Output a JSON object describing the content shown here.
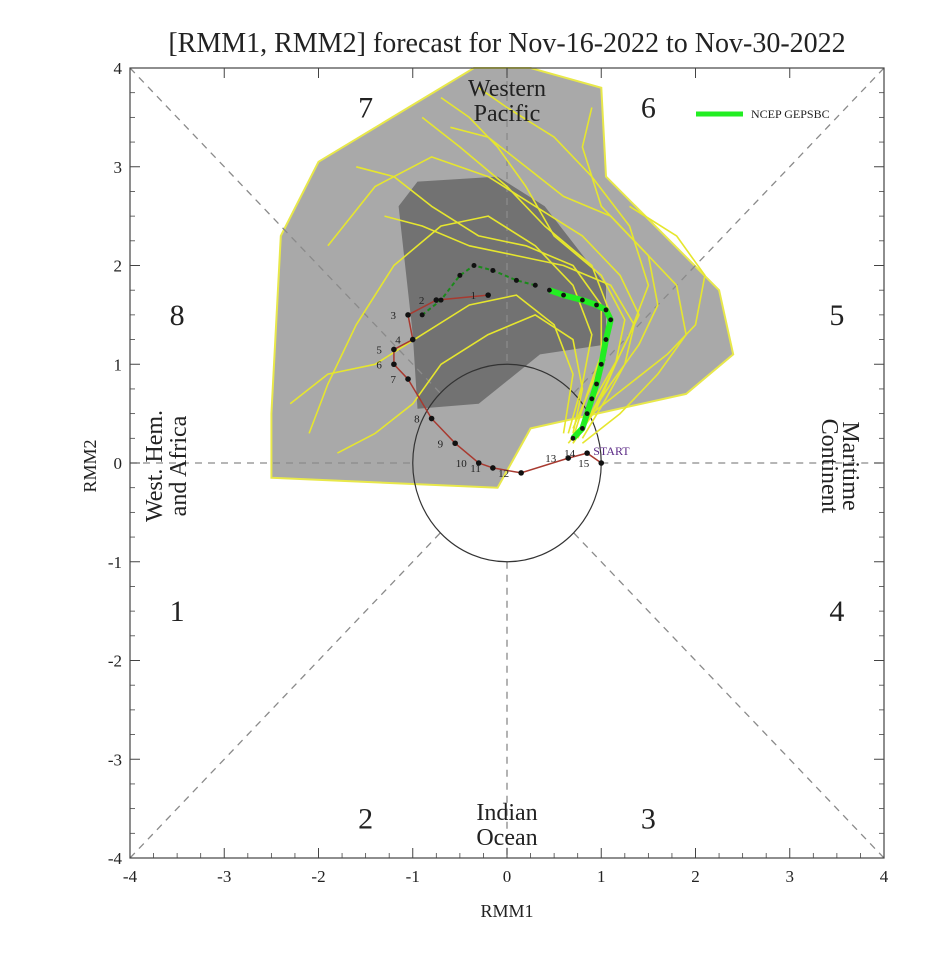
{
  "chart_data": {
    "type": "line",
    "title": "[RMM1, RMM2] forecast for Nov-16-2022 to Nov-30-2022",
    "xlabel": "RMM1",
    "ylabel": "RMM2",
    "xlim": [
      -4,
      4
    ],
    "ylim": [
      -4,
      4
    ],
    "x_ticks": [
      "-4",
      "-3",
      "-2",
      "-1",
      "0",
      "1",
      "2",
      "3",
      "4"
    ],
    "y_ticks": [
      "-4",
      "-3",
      "-2",
      "-1",
      "0",
      "1",
      "2",
      "3",
      "4"
    ],
    "phases": [
      "1",
      "2",
      "3",
      "4",
      "5",
      "6",
      "7",
      "8"
    ],
    "regions": {
      "western_pacific": [
        "Western",
        "Pacific"
      ],
      "indian_ocean": [
        "Indian",
        "Ocean"
      ],
      "maritime_continent": [
        "Maritime",
        "Continent"
      ],
      "west_hem": [
        "West. Hem.",
        "and Africa"
      ]
    },
    "legend": {
      "label": "NCEP GEPSBC",
      "color": "#22ee22",
      "placement": "top-right"
    },
    "spread_outer_90pct": [
      [
        -2.5,
        -0.15
      ],
      [
        -0.1,
        -0.25
      ],
      [
        0.25,
        0.35
      ],
      [
        1.9,
        0.7
      ],
      [
        2.4,
        1.1
      ],
      [
        2.25,
        1.75
      ],
      [
        1.05,
        2.9
      ],
      [
        1.0,
        3.8
      ],
      [
        0.25,
        4.0
      ],
      [
        -0.35,
        4.0
      ],
      [
        -2.0,
        3.05
      ],
      [
        -2.4,
        2.3
      ],
      [
        -2.5,
        0.5
      ]
    ],
    "spread_inner_50pct": [
      [
        -1.0,
        1.3
      ],
      [
        -1.15,
        2.6
      ],
      [
        -0.95,
        2.85
      ],
      [
        -0.1,
        2.9
      ],
      [
        0.4,
        2.6
      ],
      [
        1.05,
        1.8
      ],
      [
        1.05,
        1.2
      ],
      [
        0.35,
        1.1
      ],
      [
        -0.3,
        0.6
      ],
      [
        -0.95,
        0.55
      ]
    ],
    "observed": {
      "color": "#a83a30",
      "label": "START",
      "points": [
        {
          "d": "1",
          "x": -0.2,
          "y": 1.7
        },
        {
          "d": "2",
          "x": -0.75,
          "y": 1.65
        },
        {
          "d": "3",
          "x": -1.05,
          "y": 1.5
        },
        {
          "d": "4",
          "x": -1.0,
          "y": 1.25
        },
        {
          "d": "5",
          "x": -1.2,
          "y": 1.15
        },
        {
          "d": "6",
          "x": -1.2,
          "y": 1.0
        },
        {
          "d": "7",
          "x": -1.05,
          "y": 0.85
        },
        {
          "d": "8",
          "x": -0.8,
          "y": 0.45
        },
        {
          "d": "9",
          "x": -0.55,
          "y": 0.2
        },
        {
          "d": "10",
          "x": -0.3,
          "y": 0.0
        },
        {
          "d": "11",
          "x": -0.15,
          "y": -0.05
        },
        {
          "d": "12",
          "x": 0.15,
          "y": -0.1
        },
        {
          "d": "13",
          "x": 0.65,
          "y": 0.05
        },
        {
          "d": "14",
          "x": 0.85,
          "y": 0.1
        },
        {
          "d": "15",
          "x": 1.0,
          "y": 0.0
        }
      ]
    },
    "ensemble_mean": {
      "name": "NCEP GEPSBC",
      "points": [
        {
          "x": 0.7,
          "y": 0.25
        },
        {
          "x": 0.8,
          "y": 0.35
        },
        {
          "x": 0.85,
          "y": 0.5
        },
        {
          "x": 0.9,
          "y": 0.65
        },
        {
          "x": 0.95,
          "y": 0.8
        },
        {
          "x": 1.0,
          "y": 1.0
        },
        {
          "x": 1.05,
          "y": 1.25
        },
        {
          "x": 1.1,
          "y": 1.45
        },
        {
          "x": 1.05,
          "y": 1.55
        },
        {
          "x": 0.95,
          "y": 1.6
        },
        {
          "x": 0.8,
          "y": 1.65
        },
        {
          "x": 0.6,
          "y": 1.7
        },
        {
          "x": 0.45,
          "y": 1.75
        }
      ]
    },
    "control_forecast": {
      "color": "#1a8a1a",
      "points": [
        {
          "x": 0.3,
          "y": 1.8
        },
        {
          "x": 0.1,
          "y": 1.85
        },
        {
          "x": -0.15,
          "y": 1.95
        },
        {
          "x": -0.35,
          "y": 2.0
        },
        {
          "x": -0.5,
          "y": 1.9
        },
        {
          "x": -0.7,
          "y": 1.65
        },
        {
          "x": -0.9,
          "y": 1.5
        }
      ]
    },
    "ensemble_members": [
      [
        [
          0.7,
          0.2
        ],
        [
          0.9,
          0.6
        ],
        [
          1.2,
          1.1
        ],
        [
          1.4,
          1.5
        ],
        [
          1.2,
          1.9
        ],
        [
          0.8,
          2.3
        ],
        [
          0.3,
          2.6
        ],
        [
          -0.2,
          2.9
        ],
        [
          -0.8,
          3.1
        ],
        [
          -1.4,
          2.8
        ],
        [
          -1.9,
          2.2
        ]
      ],
      [
        [
          0.75,
          0.25
        ],
        [
          1.0,
          0.7
        ],
        [
          1.3,
          1.3
        ],
        [
          1.5,
          1.8
        ],
        [
          1.3,
          2.4
        ],
        [
          0.9,
          2.9
        ],
        [
          0.5,
          3.3
        ],
        [
          0.0,
          3.6
        ],
        [
          -0.3,
          3.8
        ]
      ],
      [
        [
          0.65,
          0.3
        ],
        [
          0.8,
          0.8
        ],
        [
          0.9,
          1.3
        ],
        [
          0.7,
          1.8
        ],
        [
          0.3,
          2.2
        ],
        [
          -0.2,
          2.5
        ],
        [
          -0.7,
          2.4
        ],
        [
          -1.2,
          2.0
        ],
        [
          -1.6,
          1.4
        ],
        [
          -1.9,
          0.8
        ],
        [
          -2.1,
          0.3
        ]
      ],
      [
        [
          0.7,
          0.35
        ],
        [
          0.95,
          0.9
        ],
        [
          1.1,
          1.5
        ],
        [
          0.9,
          2.0
        ],
        [
          0.4,
          2.4
        ],
        [
          0.0,
          2.8
        ],
        [
          -0.5,
          3.2
        ],
        [
          -0.9,
          3.5
        ]
      ],
      [
        [
          0.8,
          0.2
        ],
        [
          1.2,
          0.5
        ],
        [
          1.6,
          0.9
        ],
        [
          1.9,
          1.3
        ],
        [
          1.8,
          1.8
        ],
        [
          1.4,
          2.2
        ],
        [
          1.0,
          2.6
        ],
        [
          0.8,
          3.2
        ],
        [
          0.9,
          3.6
        ]
      ],
      [
        [
          0.6,
          0.3
        ],
        [
          0.7,
          0.9
        ],
        [
          0.5,
          1.4
        ],
        [
          0.1,
          1.7
        ],
        [
          -0.4,
          1.6
        ],
        [
          -0.9,
          1.3
        ],
        [
          -1.4,
          1.0
        ],
        [
          -1.9,
          0.9
        ],
        [
          -2.3,
          0.6
        ]
      ],
      [
        [
          0.75,
          0.3
        ],
        [
          1.1,
          0.8
        ],
        [
          1.4,
          1.2
        ],
        [
          1.6,
          1.6
        ],
        [
          1.5,
          2.1
        ],
        [
          1.1,
          2.5
        ],
        [
          0.6,
          2.7
        ],
        [
          0.2,
          3.0
        ],
        [
          -0.2,
          3.3
        ],
        [
          -0.6,
          3.4
        ]
      ],
      [
        [
          0.7,
          0.25
        ],
        [
          0.85,
          0.7
        ],
        [
          1.0,
          1.1
        ],
        [
          1.0,
          1.6
        ],
        [
          0.7,
          2.0
        ],
        [
          0.2,
          2.2
        ],
        [
          -0.3,
          2.3
        ],
        [
          -0.8,
          2.6
        ],
        [
          -1.2,
          2.9
        ],
        [
          -1.6,
          3.0
        ]
      ],
      [
        [
          0.65,
          0.2
        ],
        [
          0.9,
          0.5
        ],
        [
          1.3,
          0.8
        ],
        [
          1.7,
          1.1
        ],
        [
          2.0,
          1.4
        ],
        [
          2.1,
          1.9
        ],
        [
          1.8,
          2.3
        ],
        [
          1.3,
          2.6
        ]
      ],
      [
        [
          0.7,
          0.3
        ],
        [
          0.8,
          0.75
        ],
        [
          0.7,
          1.25
        ],
        [
          0.3,
          1.5
        ],
        [
          -0.2,
          1.3
        ],
        [
          -0.7,
          1.0
        ],
        [
          -1.0,
          0.6
        ],
        [
          -1.4,
          0.3
        ],
        [
          -1.8,
          0.1
        ]
      ],
      [
        [
          0.8,
          0.25
        ],
        [
          1.05,
          0.65
        ],
        [
          1.25,
          1.0
        ],
        [
          1.35,
          1.4
        ],
        [
          1.1,
          1.8
        ],
        [
          0.6,
          2.0
        ],
        [
          0.1,
          2.1
        ],
        [
          -0.4,
          2.2
        ],
        [
          -0.9,
          2.4
        ],
        [
          -1.3,
          2.5
        ]
      ],
      [
        [
          0.7,
          0.2
        ],
        [
          0.95,
          0.55
        ],
        [
          1.15,
          1.0
        ],
        [
          1.25,
          1.45
        ],
        [
          1.0,
          1.9
        ],
        [
          0.5,
          2.3
        ],
        [
          0.2,
          2.8
        ],
        [
          -0.1,
          3.2
        ],
        [
          -0.4,
          3.5
        ],
        [
          -0.7,
          3.7
        ]
      ]
    ]
  }
}
